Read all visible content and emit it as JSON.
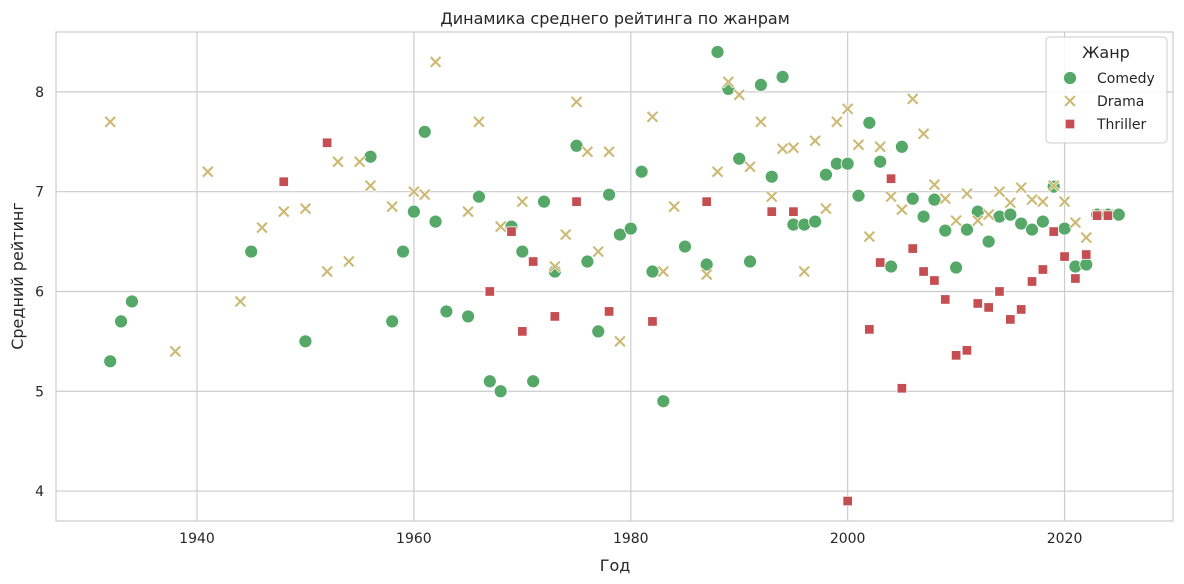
{
  "chart_data": {
    "type": "scatter",
    "title": "Динамика среднего рейтинга по жанрам",
    "xlabel": "Год",
    "ylabel": "Средний рейтинг",
    "xlim": [
      1927,
      2030
    ],
    "ylim": [
      3.7,
      8.6
    ],
    "xticks": [
      1940,
      1960,
      1980,
      2000,
      2020
    ],
    "yticks": [
      4,
      5,
      6,
      7,
      8
    ],
    "grid": true,
    "legend": {
      "title": "Жанр",
      "placement": "top-right"
    },
    "series": [
      {
        "name": "Comedy",
        "marker": "circle",
        "color": "#55a868",
        "points": [
          [
            1932,
            5.3
          ],
          [
            1933,
            5.7
          ],
          [
            1934,
            5.9
          ],
          [
            1945,
            6.4
          ],
          [
            1950,
            5.5
          ],
          [
            1956,
            7.35
          ],
          [
            1958,
            5.7
          ],
          [
            1959,
            6.4
          ],
          [
            1960,
            6.8
          ],
          [
            1961,
            7.6
          ],
          [
            1962,
            6.7
          ],
          [
            1963,
            5.8
          ],
          [
            1965,
            5.75
          ],
          [
            1966,
            6.95
          ],
          [
            1967,
            5.1
          ],
          [
            1968,
            5.0
          ],
          [
            1969,
            6.65
          ],
          [
            1970,
            6.4
          ],
          [
            1971,
            5.1
          ],
          [
            1972,
            6.9
          ],
          [
            1973,
            6.2
          ],
          [
            1975,
            7.46
          ],
          [
            1976,
            6.3
          ],
          [
            1977,
            5.6
          ],
          [
            1978,
            6.97
          ],
          [
            1979,
            6.57
          ],
          [
            1980,
            6.63
          ],
          [
            1981,
            7.2
          ],
          [
            1982,
            6.2
          ],
          [
            1983,
            4.9
          ],
          [
            1985,
            6.45
          ],
          [
            1987,
            6.27
          ],
          [
            1988,
            8.4
          ],
          [
            1989,
            8.03
          ],
          [
            1990,
            7.33
          ],
          [
            1991,
            6.3
          ],
          [
            1992,
            8.07
          ],
          [
            1993,
            7.15
          ],
          [
            1994,
            8.15
          ],
          [
            1995,
            6.67
          ],
          [
            1996,
            6.67
          ],
          [
            1997,
            6.7
          ],
          [
            1998,
            7.17
          ],
          [
            1999,
            7.28
          ],
          [
            2000,
            7.28
          ],
          [
            2001,
            6.96
          ],
          [
            2002,
            7.69
          ],
          [
            2003,
            7.3
          ],
          [
            2004,
            6.25
          ],
          [
            2005,
            7.45
          ],
          [
            2006,
            6.93
          ],
          [
            2007,
            6.75
          ],
          [
            2008,
            6.92
          ],
          [
            2009,
            6.61
          ],
          [
            2010,
            6.24
          ],
          [
            2011,
            6.62
          ],
          [
            2012,
            6.8
          ],
          [
            2013,
            6.5
          ],
          [
            2014,
            6.75
          ],
          [
            2015,
            6.77
          ],
          [
            2016,
            6.68
          ],
          [
            2017,
            6.62
          ],
          [
            2018,
            6.7
          ],
          [
            2019,
            7.05
          ],
          [
            2020,
            6.63
          ],
          [
            2021,
            6.25
          ],
          [
            2022,
            6.27
          ],
          [
            2023,
            6.77
          ],
          [
            2024,
            6.77
          ],
          [
            2025,
            6.77
          ]
        ]
      },
      {
        "name": "Drama",
        "marker": "x",
        "color": "#ccb974",
        "points": [
          [
            1932,
            7.7
          ],
          [
            1938,
            5.4
          ],
          [
            1941,
            7.2
          ],
          [
            1944,
            5.9
          ],
          [
            1946,
            6.64
          ],
          [
            1948,
            6.8
          ],
          [
            1950,
            6.83
          ],
          [
            1952,
            6.2
          ],
          [
            1953,
            7.3
          ],
          [
            1954,
            6.3
          ],
          [
            1955,
            7.3
          ],
          [
            1956,
            7.06
          ],
          [
            1958,
            6.85
          ],
          [
            1960,
            7.0
          ],
          [
            1961,
            6.97
          ],
          [
            1962,
            8.3
          ],
          [
            1965,
            6.8
          ],
          [
            1966,
            7.7
          ],
          [
            1968,
            6.65
          ],
          [
            1970,
            6.9
          ],
          [
            1973,
            6.25
          ],
          [
            1974,
            6.57
          ],
          [
            1975,
            7.9
          ],
          [
            1976,
            7.4
          ],
          [
            1977,
            6.4
          ],
          [
            1978,
            7.4
          ],
          [
            1979,
            5.5
          ],
          [
            1982,
            7.75
          ],
          [
            1983,
            6.2
          ],
          [
            1984,
            6.85
          ],
          [
            1987,
            6.17
          ],
          [
            1988,
            7.2
          ],
          [
            1989,
            8.1
          ],
          [
            1990,
            7.97
          ],
          [
            1991,
            7.25
          ],
          [
            1992,
            7.7
          ],
          [
            1993,
            6.95
          ],
          [
            1994,
            7.43
          ],
          [
            1995,
            7.44
          ],
          [
            1996,
            6.2
          ],
          [
            1997,
            7.51
          ],
          [
            1998,
            6.83
          ],
          [
            1999,
            7.7
          ],
          [
            2000,
            7.83
          ],
          [
            2001,
            7.47
          ],
          [
            2002,
            6.55
          ],
          [
            2003,
            7.45
          ],
          [
            2004,
            6.95
          ],
          [
            2005,
            6.82
          ],
          [
            2006,
            7.93
          ],
          [
            2007,
            7.58
          ],
          [
            2008,
            7.07
          ],
          [
            2009,
            6.93
          ],
          [
            2010,
            6.71
          ],
          [
            2011,
            6.98
          ],
          [
            2012,
            6.71
          ],
          [
            2013,
            6.77
          ],
          [
            2014,
            7.0
          ],
          [
            2015,
            6.89
          ],
          [
            2016,
            7.04
          ],
          [
            2017,
            6.92
          ],
          [
            2018,
            6.9
          ],
          [
            2019,
            7.06
          ],
          [
            2020,
            6.9
          ],
          [
            2021,
            6.69
          ],
          [
            2022,
            6.54
          ],
          [
            2023,
            6.77
          ],
          [
            2024,
            6.77
          ]
        ]
      },
      {
        "name": "Thriller",
        "marker": "square",
        "color": "#c44e52",
        "points": [
          [
            1948,
            7.1
          ],
          [
            1952,
            7.49
          ],
          [
            1967,
            6.0
          ],
          [
            1969,
            6.6
          ],
          [
            1970,
            5.6
          ],
          [
            1971,
            6.3
          ],
          [
            1973,
            5.75
          ],
          [
            1975,
            6.9
          ],
          [
            1978,
            5.8
          ],
          [
            1982,
            5.7
          ],
          [
            1987,
            6.9
          ],
          [
            1993,
            6.8
          ],
          [
            1995,
            6.8
          ],
          [
            2000,
            3.9
          ],
          [
            2002,
            5.62
          ],
          [
            2003,
            6.29
          ],
          [
            2004,
            7.13
          ],
          [
            2005,
            5.03
          ],
          [
            2006,
            6.43
          ],
          [
            2007,
            6.2
          ],
          [
            2008,
            6.11
          ],
          [
            2009,
            5.92
          ],
          [
            2010,
            5.36
          ],
          [
            2011,
            5.41
          ],
          [
            2012,
            5.88
          ],
          [
            2013,
            5.84
          ],
          [
            2014,
            6.0
          ],
          [
            2015,
            5.72
          ],
          [
            2016,
            5.82
          ],
          [
            2017,
            6.1
          ],
          [
            2018,
            6.22
          ],
          [
            2019,
            6.6
          ],
          [
            2020,
            6.35
          ],
          [
            2021,
            6.13
          ],
          [
            2022,
            6.37
          ],
          [
            2023,
            6.76
          ],
          [
            2024,
            6.76
          ]
        ]
      }
    ]
  }
}
